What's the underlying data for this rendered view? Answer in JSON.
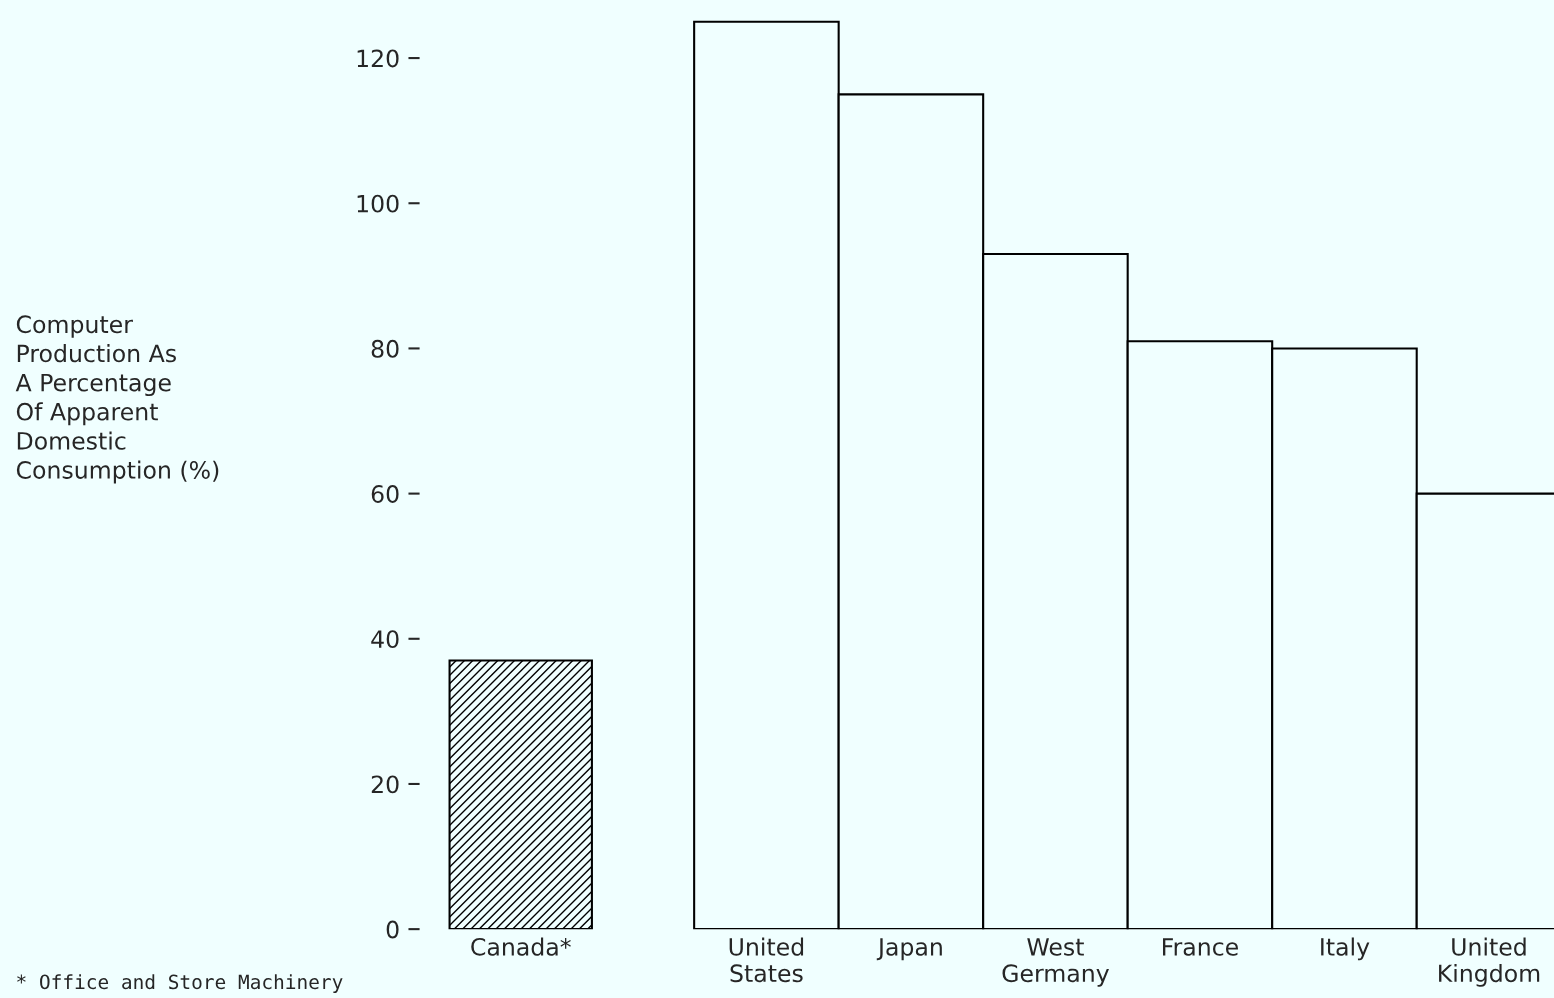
{
  "chart_data": {
    "type": "bar",
    "categories": [
      "Canada*",
      "United\nStates",
      "Japan",
      "West\nGermany",
      "France",
      "Italy",
      "United\nKingdom"
    ],
    "values": [
      37,
      125,
      115,
      93,
      81,
      80,
      60
    ],
    "colors": [
      "#000000",
      "#f0ffff",
      "#f0ffff",
      "#f0ffff",
      "#f0ffff",
      "#f0ffff",
      "#f0ffff"
    ],
    "ylim": [
      0,
      128
    ],
    "yticks": [
      0,
      20,
      40,
      60,
      80,
      100,
      120
    ],
    "grid": false,
    "legend": false,
    "annotations": [
      "Computer\nProduction As\nA Percentage\nOf Apparent\nDomestic\nConsumption (%)",
      "* Office and Store Machinery"
    ]
  }
}
